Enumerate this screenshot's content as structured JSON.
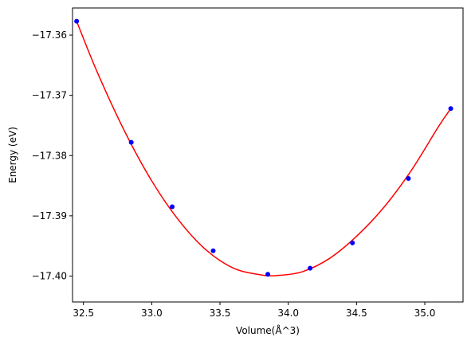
{
  "chart_data": {
    "type": "scatter",
    "title": "",
    "xlabel": "Volume(Å^3)",
    "ylabel": "Energy (eV)",
    "xlim": [
      32.42,
      35.28
    ],
    "ylim": [
      -17.4043,
      -17.3555
    ],
    "xticks": [
      32.5,
      33.0,
      33.5,
      34.0,
      34.5,
      35.0
    ],
    "xtick_labels": [
      "32.5",
      "33.0",
      "33.5",
      "34.0",
      "34.5",
      "35.0"
    ],
    "yticks": [
      -17.36,
      -17.37,
      -17.38,
      -17.39,
      -17.4
    ],
    "ytick_labels": [
      "−17.36",
      "−17.37",
      "−17.38",
      "−17.39",
      "−17.40"
    ],
    "grid": false,
    "series": [
      {
        "kind": "points",
        "color": "#0000ff",
        "marker": "circle",
        "x": [
          32.45,
          32.85,
          33.15,
          33.45,
          33.85,
          34.16,
          34.47,
          34.88,
          35.19
        ],
        "y": [
          -17.3577,
          -17.3778,
          -17.3885,
          -17.3958,
          -17.3997,
          -17.3987,
          -17.3945,
          -17.3838,
          -17.3722
        ]
      },
      {
        "kind": "fit-curve",
        "color": "#ff0000",
        "x": [
          32.45,
          32.6,
          32.8,
          33.0,
          33.2,
          33.4,
          33.6,
          33.8,
          33.92,
          34.1,
          34.3,
          34.5,
          34.7,
          34.9,
          35.1,
          35.19
        ],
        "y": [
          -17.3577,
          -17.3661,
          -17.3759,
          -17.3842,
          -17.3908,
          -17.3957,
          -17.3987,
          -17.3998,
          -17.3999,
          -17.3993,
          -17.3971,
          -17.3934,
          -17.3886,
          -17.3825,
          -17.3752,
          -17.3722
        ]
      }
    ]
  }
}
